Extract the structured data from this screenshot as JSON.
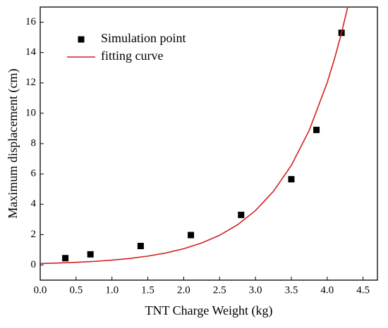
{
  "chart_data": {
    "type": "scatter",
    "xlabel": "TNT Charge Weight (kg)",
    "ylabel": "Maximum displacement (cm)",
    "xlim": [
      0,
      4.7
    ],
    "ylim": [
      -1,
      17
    ],
    "xticks": [
      {
        "value": 0,
        "label": "0.0"
      },
      {
        "value": 0.5,
        "label": "0.5"
      },
      {
        "value": 1,
        "label": "1.0"
      },
      {
        "value": 1.5,
        "label": "1.5"
      },
      {
        "value": 2,
        "label": "2.0"
      },
      {
        "value": 2.5,
        "label": "2.5"
      },
      {
        "value": 3,
        "label": "3.0"
      },
      {
        "value": 3.5,
        "label": "3.5"
      },
      {
        "value": 4,
        "label": "4.0"
      },
      {
        "value": 4.5,
        "label": "4.5"
      }
    ],
    "yticks": [
      0,
      2,
      4,
      6,
      8,
      10,
      12,
      14,
      16
    ],
    "legend": "upper left",
    "series": [
      {
        "name": "Simulation point",
        "type": "scatter",
        "color": "#000000",
        "x": [
          0.35,
          0.7,
          1.4,
          2.1,
          2.8,
          3.5,
          3.85,
          4.2
        ],
        "values": [
          0.45,
          0.7,
          1.25,
          1.97,
          3.3,
          5.65,
          8.9,
          15.3
        ]
      },
      {
        "name": "fitting curve",
        "type": "line",
        "color": "#d42020",
        "x": [
          0,
          0.25,
          0.5,
          0.75,
          1.0,
          1.25,
          1.5,
          1.75,
          2.0,
          2.25,
          2.5,
          2.75,
          3.0,
          3.25,
          3.5,
          3.75,
          4.0,
          4.1,
          4.2,
          4.3
        ],
        "values": [
          0.095,
          0.129,
          0.174,
          0.235,
          0.319,
          0.431,
          0.583,
          0.79,
          1.069,
          1.446,
          1.956,
          2.648,
          3.583,
          4.849,
          6.562,
          8.879,
          12.02,
          13.56,
          15.3,
          17.27
        ]
      }
    ]
  }
}
